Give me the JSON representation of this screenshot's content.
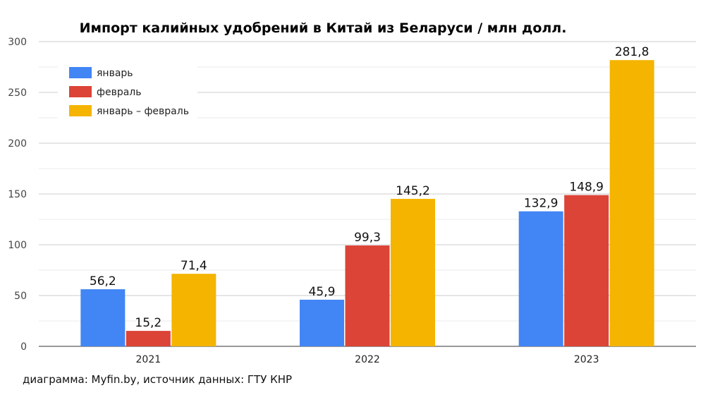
{
  "chart_data": {
    "type": "bar",
    "title": "Импорт калийных удобрений в Китай из Беларуси / млн долл.",
    "xlabel": "",
    "ylabel": "",
    "ylim": [
      0,
      300
    ],
    "yticks": [
      0,
      50,
      100,
      150,
      200,
      250,
      300
    ],
    "categories": [
      "2021",
      "2022",
      "2023"
    ],
    "series": [
      {
        "name": "январь",
        "color": "#4285f4",
        "values": [
          56.2,
          45.9,
          132.9
        ],
        "labels": [
          "56,2",
          "45,9",
          "132,9"
        ]
      },
      {
        "name": "февраль",
        "color": "#db4437",
        "values": [
          15.2,
          99.3,
          148.9
        ],
        "labels": [
          "15,2",
          "99,3",
          "148,9"
        ]
      },
      {
        "name": "январь – февраль",
        "color": "#f4b400",
        "values": [
          71.4,
          145.2,
          281.8
        ],
        "labels": [
          "71,4",
          "145,2",
          "281,8"
        ]
      }
    ],
    "legend_position": "top-left",
    "grid": true,
    "footer": "диаграмма: Myfin.by, источник данных: ГТУ КНР"
  }
}
